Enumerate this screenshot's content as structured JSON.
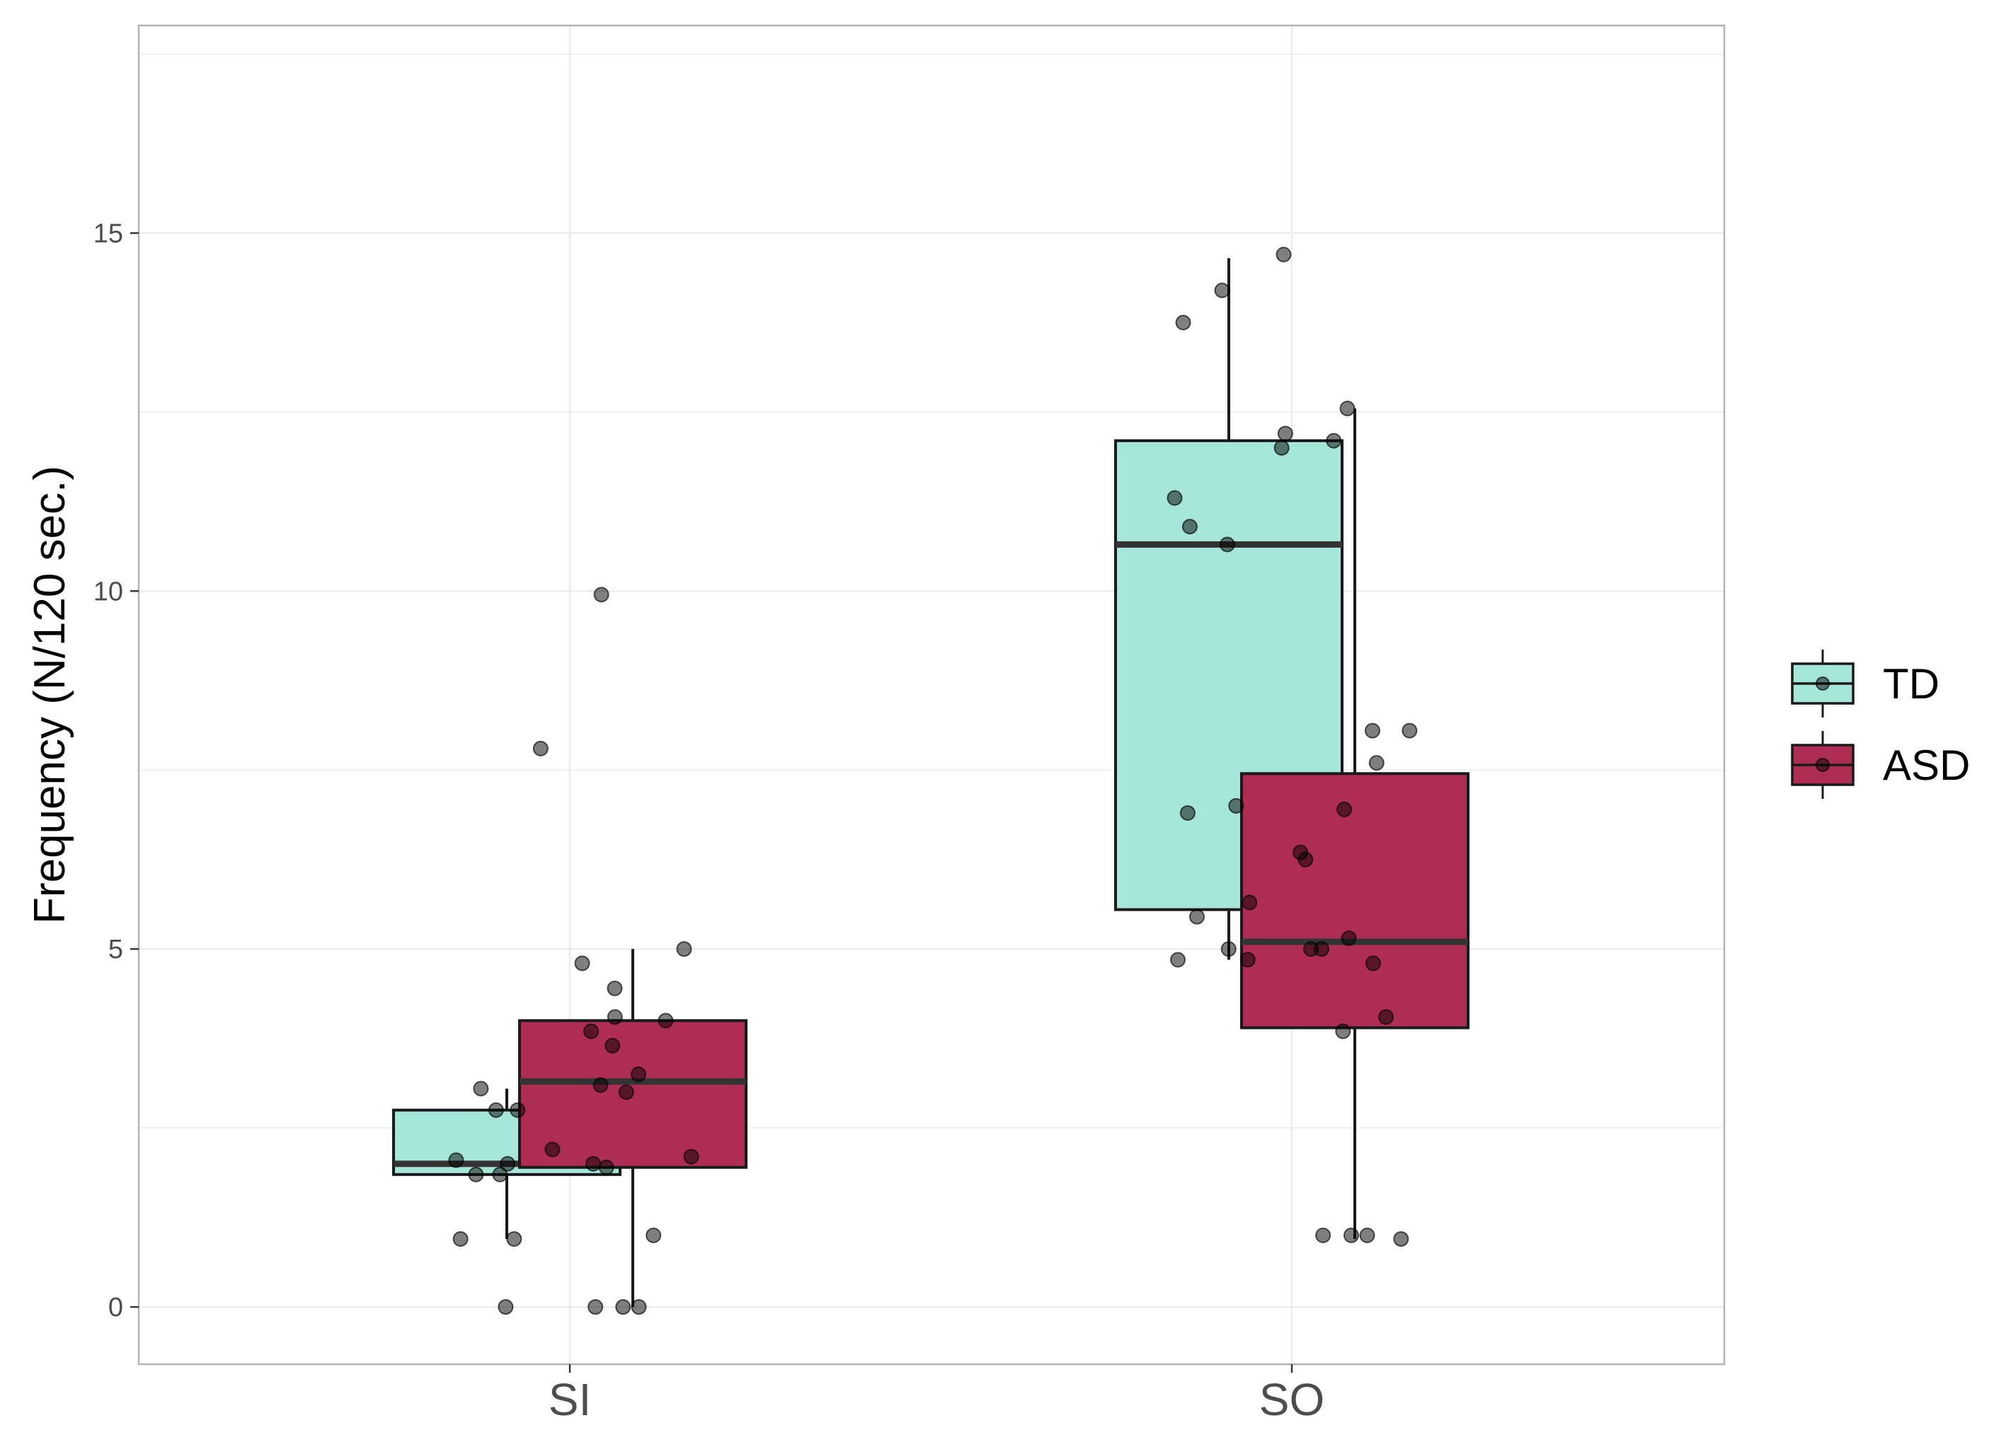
{
  "chart_data": {
    "type": "boxplot",
    "title": "",
    "xlabel": "",
    "ylabel": "Frequency (N/120 sec.)",
    "categories": [
      "SI",
      "SO"
    ],
    "ylim": [
      -0.8,
      17.9
    ],
    "yticks": [
      0,
      5,
      10,
      15
    ],
    "grid": true,
    "legend_position": "right",
    "series": [
      {
        "name": "TD",
        "color": "#a6e5d9",
        "boxes": [
          {
            "category": "SI",
            "min": 0.95,
            "q1": 1.85,
            "median": 2.0,
            "q3": 2.75,
            "max": 3.05
          },
          {
            "category": "SO",
            "min": 4.85,
            "q1": 5.55,
            "median": 10.65,
            "q3": 12.1,
            "max": 14.65
          }
        ],
        "points": [
          {
            "category": "SI",
            "values": [
              0,
              0.95,
              0.95,
              1.85,
              1.85,
              2.0,
              2.05,
              2.2,
              2.75,
              2.75,
              3.05,
              7.8
            ]
          },
          {
            "category": "SO",
            "values": [
              4.85,
              4.85,
              5.0,
              5.45,
              5.65,
              6.9,
              7.0,
              10.65,
              10.9,
              11.3,
              12.0,
              12.2,
              13.75,
              14.2,
              14.7
            ]
          }
        ]
      },
      {
        "name": "ASD",
        "color": "#ae2e53",
        "boxes": [
          {
            "category": "SI",
            "min": 0.0,
            "q1": 1.95,
            "median": 3.15,
            "q3": 4.0,
            "max": 5.0
          },
          {
            "category": "SO",
            "min": 0.95,
            "q1": 3.9,
            "median": 5.1,
            "q3": 7.45,
            "max": 12.55
          }
        ],
        "points": [
          {
            "category": "SI",
            "values": [
              0,
              0,
              0,
              1.0,
              1.95,
              2.0,
              2.1,
              3.0,
              3.1,
              3.25,
              3.65,
              3.85,
              4.0,
              4.05,
              4.45,
              4.8,
              5.0,
              9.95
            ]
          },
          {
            "category": "SO",
            "values": [
              0.95,
              1.0,
              1.0,
              1.0,
              3.85,
              4.05,
              4.8,
              5.0,
              5.0,
              5.15,
              6.25,
              6.35,
              6.95,
              7.6,
              8.05,
              8.05,
              12.1,
              12.55
            ]
          }
        ]
      }
    ]
  }
}
